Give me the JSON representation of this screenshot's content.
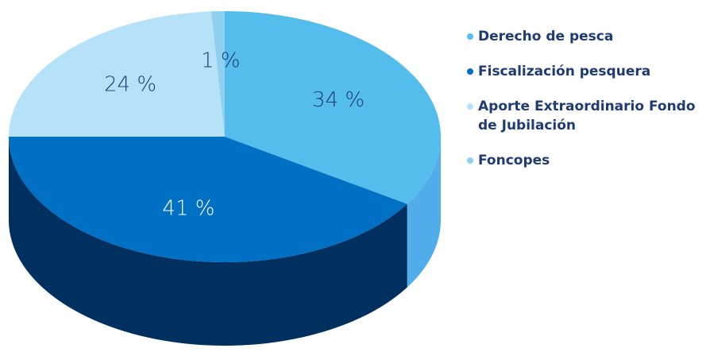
{
  "chart_data": {
    "type": "pie3d",
    "categories": [
      "Derecho de pesca",
      "Fiscalización pesquera",
      "Aporte Extraordinario Fondo de Jubilación",
      "Foncopes"
    ],
    "values": [
      34,
      41,
      24,
      1
    ],
    "value_labels": [
      "34 %",
      "41 %",
      "24 %",
      "1 %"
    ],
    "colors": [
      "#55bdec",
      "#0070c4",
      "#b5e2f8",
      "#8fd0f1"
    ],
    "depth_colors": [
      "#52aeea",
      "#00305f",
      "#8fcff0",
      "#8fcff0"
    ],
    "legend": "right"
  }
}
